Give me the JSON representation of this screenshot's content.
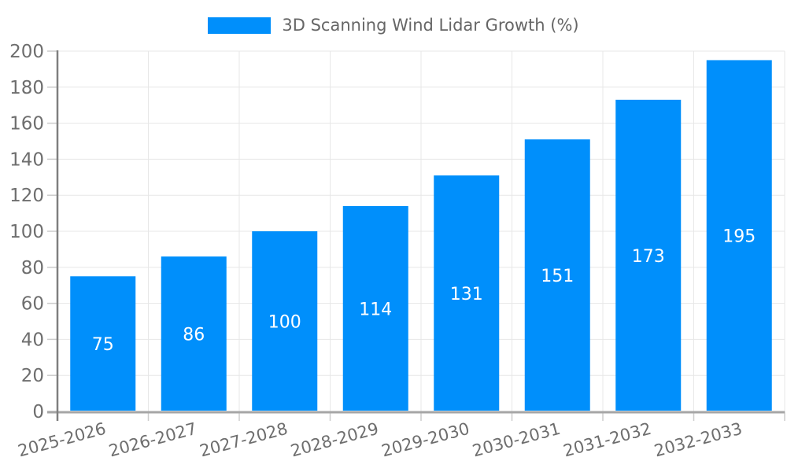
{
  "chart_data": {
    "type": "bar",
    "title": "3D Scanning Wind Lidar Growth (%)",
    "categories": [
      "2025-2026",
      "2026-2027",
      "2027-2028",
      "2028-2029",
      "2029-2030",
      "2030-2031",
      "2031-2032",
      "2032-2033"
    ],
    "series": [
      {
        "name": "3D Scanning Wind Lidar Growth (%)",
        "values": [
          75,
          86,
          100,
          114,
          131,
          151,
          173,
          195
        ]
      }
    ],
    "value_labels_shown": true,
    "xlabel": "",
    "ylabel": "",
    "ylim": [
      0,
      200
    ],
    "yticks": [
      0,
      20,
      40,
      60,
      80,
      100,
      120,
      140,
      160,
      180,
      200
    ],
    "xtick_rotation_deg": -15,
    "grid": true,
    "legend_position": "top",
    "colors": {
      "bar": "#008ffb",
      "value_label": "#ffffff",
      "axis_label": "#6e6e6e",
      "legend_text": "#666666",
      "grid_line": "#e7e7e7",
      "tick_line": "#cccccc",
      "y_axis_line": "#7f7f7f",
      "x_axis_line": "#a6a6a6",
      "background": "#ffffff"
    }
  }
}
